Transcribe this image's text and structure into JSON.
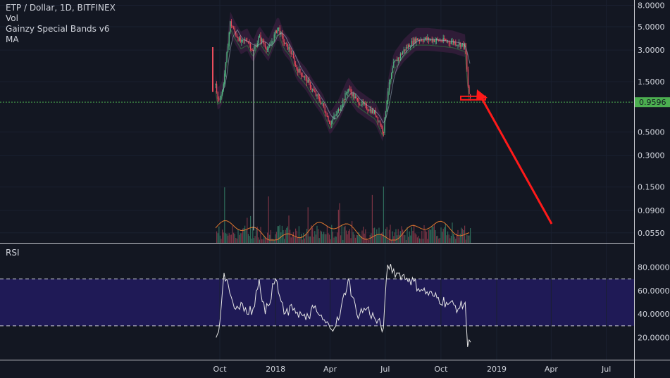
{
  "chart_data": [
    {
      "type": "candlestick",
      "title": "ETP / Dollar, 1D, BITFINEX",
      "indicators": [
        "Vol",
        "Gainzy Special Bands v6",
        "MA"
      ],
      "y_scale": "log",
      "y_ticks": [
        "8.0000",
        "5.0000",
        "3.0000",
        "1.5000",
        "0.9596",
        "0.5000",
        "0.3000",
        "0.1500",
        "0.0900",
        "0.0550"
      ],
      "y_tick_values": [
        8.0,
        5.0,
        3.0,
        1.5,
        0.5,
        0.3,
        0.15,
        0.09,
        0.055
      ],
      "last_price": 0.9596,
      "last_price_label": "0.9596",
      "x_ticks": [
        "Oct",
        "2018",
        "Apr",
        "Jul",
        "Oct",
        "2019",
        "Apr",
        "Jul"
      ],
      "x_tick_dates": [
        "2017-10-01",
        "2018-01-01",
        "2018-04-01",
        "2018-07-01",
        "2018-10-01",
        "2019-01-01",
        "2019-04-01",
        "2019-07-01"
      ],
      "price_path": [
        {
          "date": "2017-09-24",
          "value": 1.4
        },
        {
          "date": "2017-09-28",
          "value": 1.0
        },
        {
          "date": "2017-10-05",
          "value": 1.2
        },
        {
          "date": "2017-10-12",
          "value": 2.5
        },
        {
          "date": "2017-10-18",
          "value": 5.5
        },
        {
          "date": "2017-10-25",
          "value": 4.5
        },
        {
          "date": "2017-11-05",
          "value": 3.5
        },
        {
          "date": "2017-11-15",
          "value": 3.8
        },
        {
          "date": "2017-11-25",
          "value": 2.9
        },
        {
          "date": "2017-12-05",
          "value": 4.0
        },
        {
          "date": "2017-12-20",
          "value": 3.0
        },
        {
          "date": "2018-01-05",
          "value": 5.0
        },
        {
          "date": "2018-01-15",
          "value": 3.5
        },
        {
          "date": "2018-01-25",
          "value": 3.0
        },
        {
          "date": "2018-02-05",
          "value": 2.0
        },
        {
          "date": "2018-02-20",
          "value": 1.6
        },
        {
          "date": "2018-03-05",
          "value": 1.2
        },
        {
          "date": "2018-03-20",
          "value": 0.9
        },
        {
          "date": "2018-04-01",
          "value": 0.6
        },
        {
          "date": "2018-04-15",
          "value": 0.8
        },
        {
          "date": "2018-05-01",
          "value": 1.3
        },
        {
          "date": "2018-05-15",
          "value": 1.0
        },
        {
          "date": "2018-06-01",
          "value": 0.85
        },
        {
          "date": "2018-06-15",
          "value": 0.75
        },
        {
          "date": "2018-06-28",
          "value": 0.5
        },
        {
          "date": "2018-07-05",
          "value": 1.2
        },
        {
          "date": "2018-07-15",
          "value": 2.2
        },
        {
          "date": "2018-08-01",
          "value": 3.0
        },
        {
          "date": "2018-08-20",
          "value": 3.8
        },
        {
          "date": "2018-09-10",
          "value": 3.8
        },
        {
          "date": "2018-10-01",
          "value": 3.7
        },
        {
          "date": "2018-10-20",
          "value": 3.6
        },
        {
          "date": "2018-11-10",
          "value": 3.3
        },
        {
          "date": "2018-11-15",
          "value": 1.3
        },
        {
          "date": "2018-11-19",
          "value": 0.9596
        }
      ],
      "annotation": "red arrow pointing down-right from the marked price level near 1.05"
    },
    {
      "type": "line",
      "title": "RSI",
      "y_ticks": [
        "80.0000",
        "60.0000",
        "40.0000",
        "20.0000"
      ],
      "y_tick_values": [
        80,
        60,
        40,
        20
      ],
      "ylim": [
        5,
        85
      ],
      "band": [
        30,
        70
      ],
      "series": [
        {
          "values": [
            {
              "date": "2017-09-25",
              "value": 20
            },
            {
              "date": "2017-09-29",
              "value": 25
            },
            {
              "date": "2017-10-08",
              "value": 75
            },
            {
              "date": "2017-10-15",
              "value": 65
            },
            {
              "date": "2017-10-25",
              "value": 45
            },
            {
              "date": "2017-11-05",
              "value": 50
            },
            {
              "date": "2017-11-15",
              "value": 40
            },
            {
              "date": "2017-11-25",
              "value": 45
            },
            {
              "date": "2017-12-05",
              "value": 70
            },
            {
              "date": "2017-12-15",
              "value": 40
            },
            {
              "date": "2018-01-01",
              "value": 70
            },
            {
              "date": "2018-01-15",
              "value": 40
            },
            {
              "date": "2018-02-01",
              "value": 45
            },
            {
              "date": "2018-02-20",
              "value": 35
            },
            {
              "date": "2018-03-05",
              "value": 45
            },
            {
              "date": "2018-03-20",
              "value": 35
            },
            {
              "date": "2018-04-01",
              "value": 28
            },
            {
              "date": "2018-04-15",
              "value": 35
            },
            {
              "date": "2018-05-01",
              "value": 70
            },
            {
              "date": "2018-05-15",
              "value": 40
            },
            {
              "date": "2018-06-01",
              "value": 45
            },
            {
              "date": "2018-06-15",
              "value": 35
            },
            {
              "date": "2018-06-28",
              "value": 28
            },
            {
              "date": "2018-07-05",
              "value": 82
            },
            {
              "date": "2018-07-20",
              "value": 75
            },
            {
              "date": "2018-08-10",
              "value": 70
            },
            {
              "date": "2018-09-01",
              "value": 60
            },
            {
              "date": "2018-09-20",
              "value": 55
            },
            {
              "date": "2018-10-10",
              "value": 50
            },
            {
              "date": "2018-11-01",
              "value": 45
            },
            {
              "date": "2018-11-10",
              "value": 50
            },
            {
              "date": "2018-11-14",
              "value": 12
            },
            {
              "date": "2018-11-19",
              "value": 16
            }
          ]
        }
      ]
    }
  ]
}
